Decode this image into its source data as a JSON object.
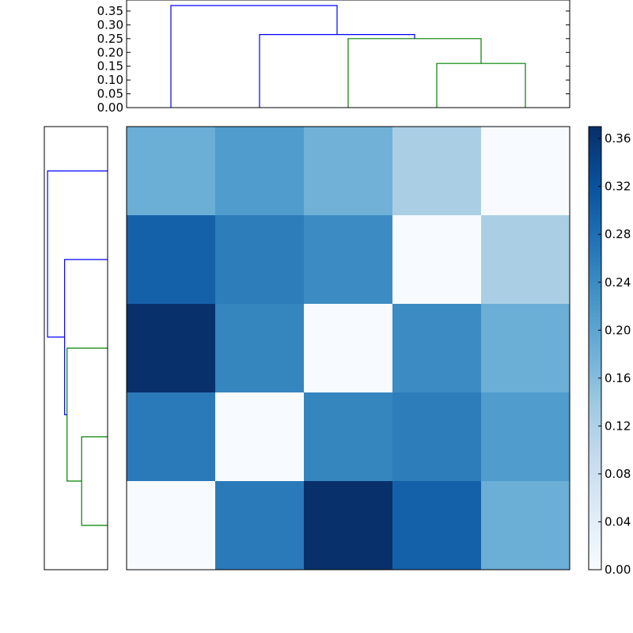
{
  "chart_data": {
    "type": "heatmap",
    "title": "",
    "xlabel": "",
    "ylabel": "",
    "grid": false,
    "colormap": "Blues",
    "vmin": 0.0,
    "vmax": 0.37,
    "matrix": [
      [
        0.185,
        0.215,
        0.18,
        0.125,
        0.0
      ],
      [
        0.3,
        0.26,
        0.24,
        0.0,
        0.125
      ],
      [
        0.37,
        0.25,
        0.0,
        0.24,
        0.185
      ],
      [
        0.265,
        0.0,
        0.25,
        0.26,
        0.215
      ],
      [
        0.0,
        0.265,
        0.37,
        0.3,
        0.185
      ]
    ],
    "colorbar": {
      "range": [
        0.0,
        0.37
      ],
      "ticks": [
        "0.00",
        "0.04",
        "0.08",
        "0.12",
        "0.16",
        "0.20",
        "0.24",
        "0.28",
        "0.32",
        "0.36"
      ]
    },
    "top_dendrogram": {
      "ylim": [
        0.0,
        0.39
      ],
      "yticks": [
        "0.00",
        "0.05",
        "0.10",
        "0.15",
        "0.20",
        "0.25",
        "0.30",
        "0.35"
      ],
      "leaf_count": 5,
      "links": [
        {
          "left_x": 3,
          "right_x": 4,
          "left_h": 0.0,
          "right_h": 0.0,
          "height": 0.16,
          "color": "#008000"
        },
        {
          "left_x": 2,
          "right_x": 3.5,
          "left_h": 0.0,
          "right_h": 0.16,
          "height": 0.25,
          "color": "#008000"
        },
        {
          "left_x": 1,
          "right_x": 2.75,
          "left_h": 0.0,
          "right_h": 0.25,
          "height": 0.265,
          "color": "#0000ff"
        },
        {
          "left_x": 0,
          "right_x": 1.875,
          "left_h": 0.0,
          "right_h": 0.265,
          "height": 0.37,
          "color": "#0000ff"
        }
      ]
    },
    "left_dendrogram": {
      "xlim": [
        0.0,
        0.39
      ],
      "leaf_count": 5,
      "links": [
        {
          "a": 0,
          "b": 1,
          "a_h": 0.0,
          "b_h": 0.0,
          "height": 0.16,
          "color": "#008000"
        },
        {
          "a": 0.5,
          "b": 2,
          "a_h": 0.16,
          "b_h": 0.0,
          "height": 0.25,
          "color": "#008000"
        },
        {
          "a": 1.25,
          "b": 3,
          "a_h": 0.25,
          "b_h": 0.0,
          "height": 0.265,
          "color": "#0000ff"
        },
        {
          "a": 2.125,
          "b": 4,
          "a_h": 0.265,
          "b_h": 0.0,
          "height": 0.37,
          "color": "#0000ff"
        }
      ]
    }
  }
}
